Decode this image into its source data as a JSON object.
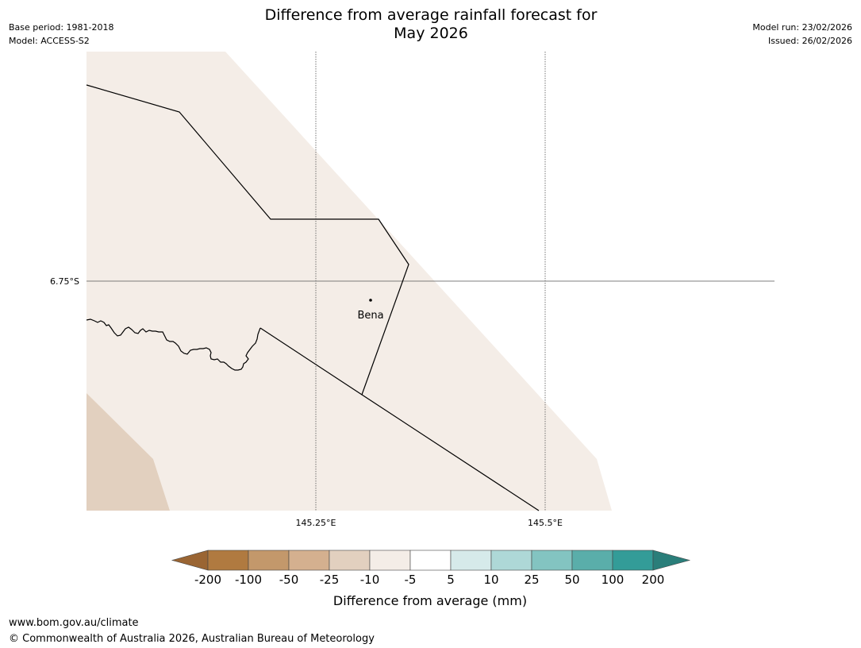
{
  "title": {
    "line1": "Difference from average rainfall forecast for",
    "line2": "May 2026"
  },
  "meta_left": {
    "base_period": "Base period: 1981-2018",
    "model": "Model: ACCESS-S2"
  },
  "meta_right": {
    "model_run": "Model run: 23/02/2026",
    "issued": "Issued: 26/02/2026"
  },
  "map": {
    "lat_labels": [
      "6.75°S"
    ],
    "lon_labels": [
      "145.25°E",
      "145.5°E"
    ],
    "place": {
      "name": "Bena"
    },
    "colors": {
      "near_average_fill": "#f4ede7",
      "drier_fill": "#e2d0bf",
      "boundary": "#000000",
      "gridline": "#555555"
    }
  },
  "colorbar": {
    "label": "Difference from average (mm)",
    "ticks": [
      "-200",
      "-100",
      "-50",
      "-25",
      "-10",
      "-5",
      "5",
      "10",
      "25",
      "50",
      "100",
      "200"
    ],
    "colors": [
      "#b07a40",
      "#c3986b",
      "#d4b08f",
      "#e2d0bf",
      "#f4ede7",
      "#ffffff",
      "#d6eaea",
      "#aed8d7",
      "#83c4c1",
      "#5aaeaa",
      "#339c98"
    ],
    "extend_low_color": "#9a6533",
    "extend_high_color": "#2a7e7a"
  },
  "footer": {
    "website": "www.bom.gov.au/climate",
    "copyright": "© Commonwealth of Australia 2026, Australian Bureau of Meteorology"
  }
}
